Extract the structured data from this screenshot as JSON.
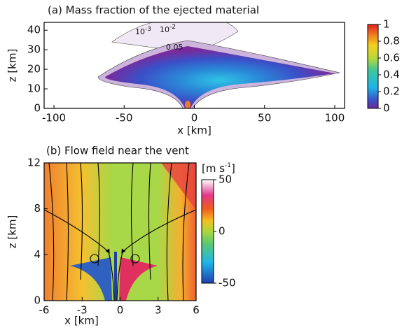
{
  "chart_data": [
    {
      "type": "heatmap",
      "title": "(a) Mass fraction of the ejected material",
      "xlabel": "x [km]",
      "ylabel": "z [km]",
      "xlim": [
        -107,
        107
      ],
      "xticks": [
        -100,
        -50,
        0,
        50,
        100
      ],
      "ylim": [
        0,
        44
      ],
      "yticks": [
        0,
        10,
        20,
        30,
        40
      ],
      "clim": [
        0,
        1
      ],
      "cticks": [
        0,
        0.2,
        0.4,
        0.6,
        0.8,
        1
      ],
      "contour_labels": [
        {
          "text": "10",
          "sup": "-3"
        },
        {
          "text": "10",
          "sup": "-2"
        },
        {
          "text": "0.05"
        }
      ]
    },
    {
      "type": "flow",
      "title": "(b) Flow field near the vent",
      "xlabel": "x [km]",
      "ylabel": "z [km]",
      "xlim": [
        -6,
        6
      ],
      "xticks": [
        -6,
        -3,
        0,
        3,
        6
      ],
      "ylim": [
        0,
        12
      ],
      "yticks": [
        0,
        4,
        8,
        12
      ],
      "clim": [
        -50,
        50
      ],
      "cticks": [
        -50,
        0,
        50
      ],
      "colorbar_label": {
        "text": "[m s",
        "sup": "-1",
        "end": "]"
      }
    }
  ]
}
